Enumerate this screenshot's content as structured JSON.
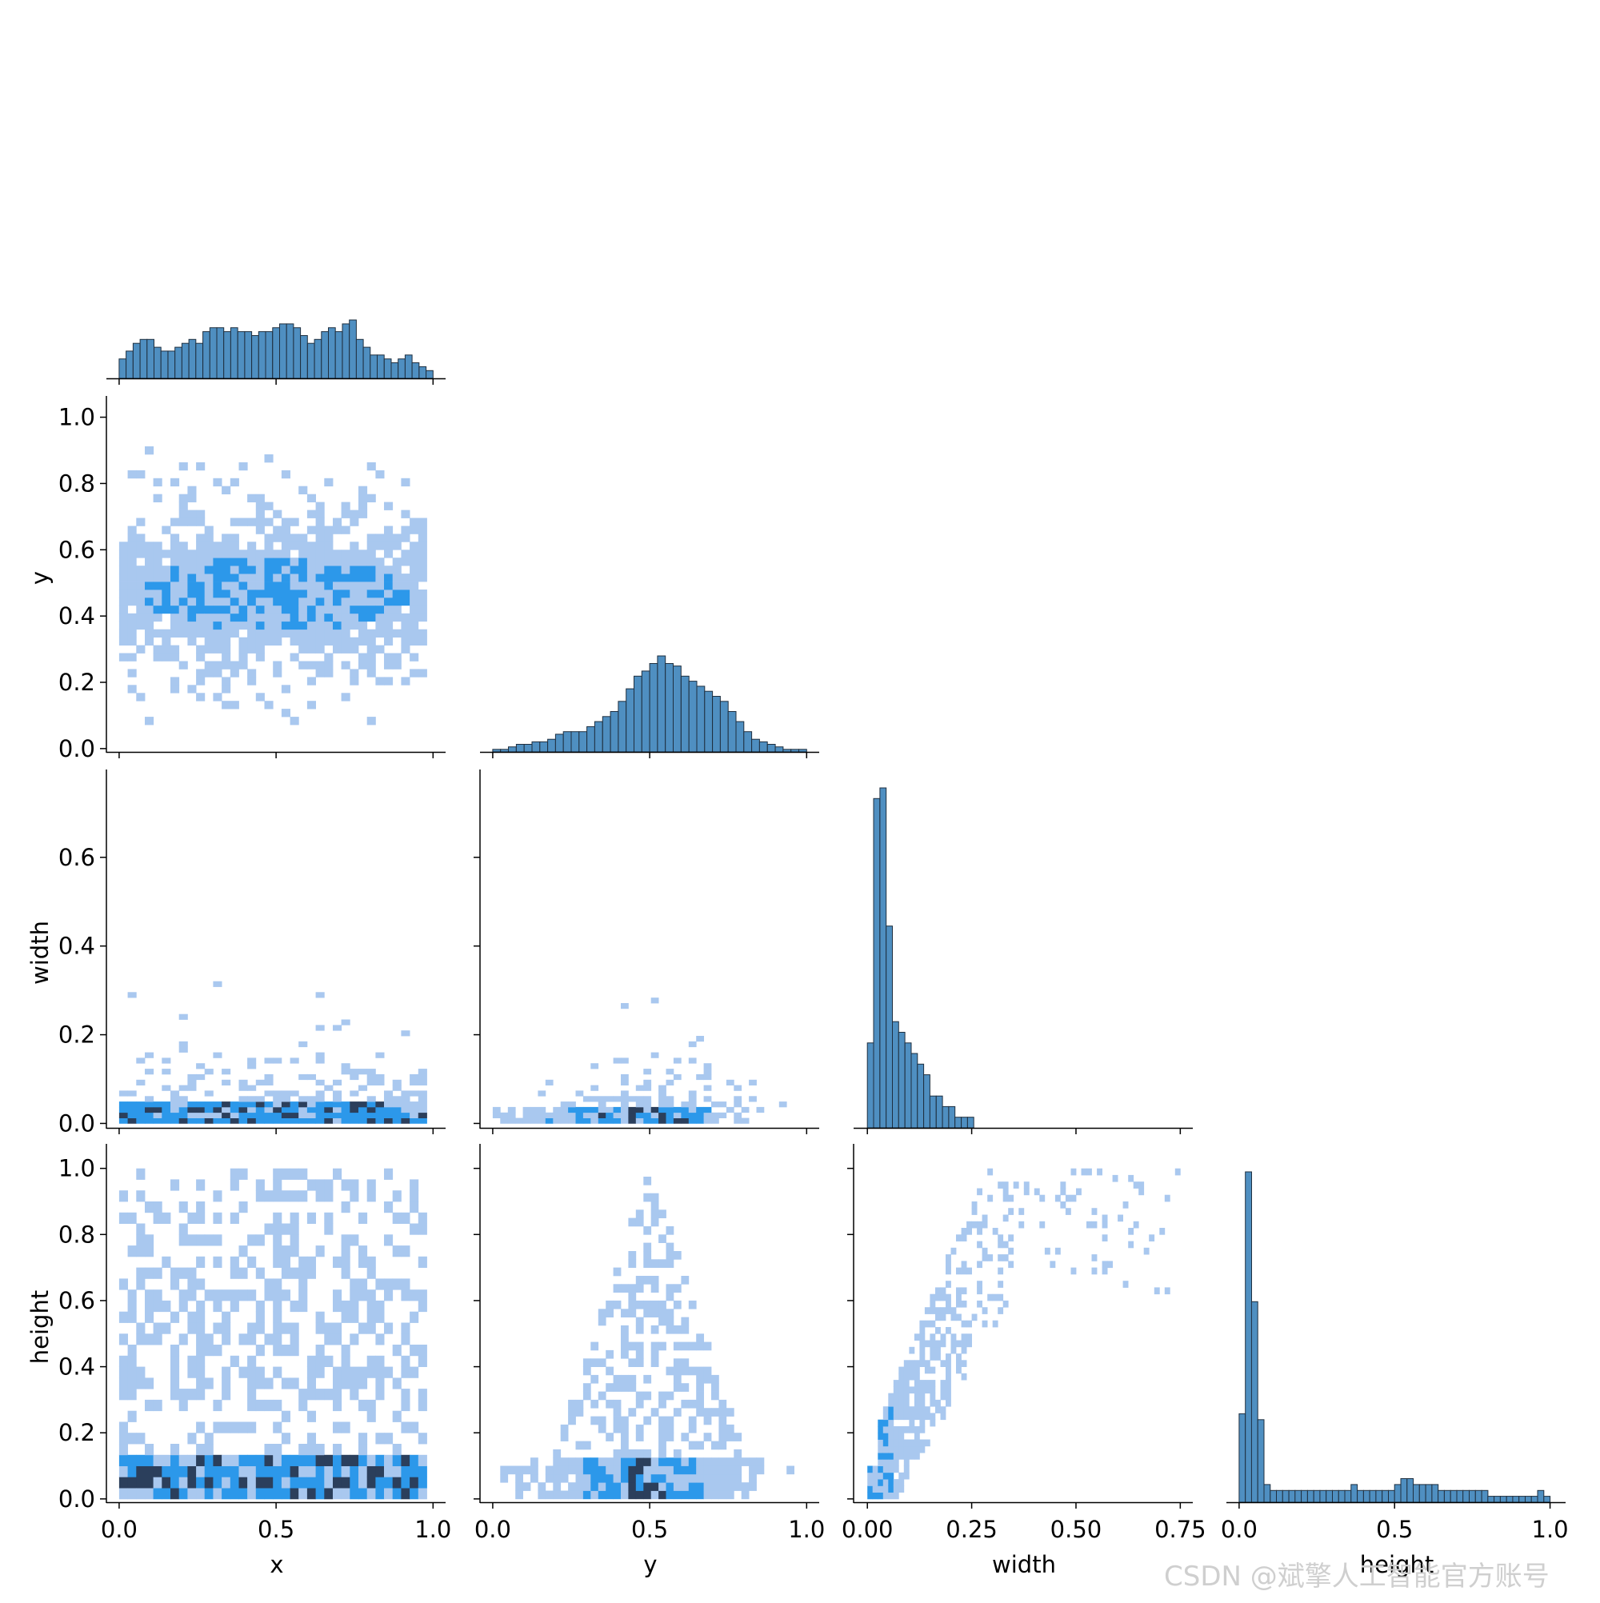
{
  "colors": {
    "hist_fill": "#4f8fc1",
    "hist_edge": "#1f2f3f",
    "heat_light": "#a9c8ef",
    "heat_mid": "#2c98ea",
    "heat_dark": "#2b3f5c",
    "axis": "#000000"
  },
  "watermark": "CSDN @斌擎人工智能官方账号",
  "chart_data": {
    "type": "pairplot",
    "variables": [
      "x",
      "y",
      "width",
      "height"
    ],
    "axis_labels": {
      "x": "x",
      "y": "y",
      "width": "width",
      "height": "height"
    },
    "ticks": {
      "x": {
        "values": [
          0.0,
          0.5,
          1.0
        ],
        "labels": [
          "0.0",
          "0.5",
          "1.0"
        ]
      },
      "y": {
        "values": [
          0.0,
          0.5,
          1.0
        ],
        "labels": [
          "0.0",
          "0.5",
          "1.0"
        ]
      },
      "width": {
        "values": [
          0.0,
          0.25,
          0.5,
          0.75
        ],
        "labels": [
          "0.00",
          "0.25",
          "0.50",
          "0.75"
        ]
      },
      "height": {
        "values": [
          0.0,
          0.5,
          1.0
        ],
        "labels": [
          "0.0",
          "0.5",
          "1.0"
        ]
      }
    },
    "row_ticks": {
      "y": {
        "values": [
          0.0,
          0.2,
          0.4,
          0.6,
          0.8,
          1.0
        ],
        "labels": [
          "0.0",
          "0.2",
          "0.4",
          "0.6",
          "0.8",
          "1.0"
        ]
      },
      "width": {
        "values": [
          0.0,
          0.2,
          0.4,
          0.6
        ],
        "labels": [
          "0.0",
          "0.2",
          "0.4",
          "0.6"
        ]
      },
      "height": {
        "values": [
          0.0,
          0.2,
          0.4,
          0.6,
          0.8,
          1.0
        ],
        "labels": [
          "0.0",
          "0.2",
          "0.4",
          "0.6",
          "0.8",
          "1.0"
        ]
      }
    },
    "ranges": {
      "x": [
        -0.01,
        1.04
      ],
      "y": [
        -0.01,
        1.04
      ],
      "width": [
        -0.01,
        0.78
      ],
      "height": [
        -0.01,
        1.05
      ]
    },
    "grid": false,
    "histograms": {
      "x": {
        "range": [
          0.0,
          1.0
        ],
        "counts": [
          5,
          7,
          9,
          10,
          10,
          8,
          7,
          7,
          8,
          9,
          10,
          9,
          12,
          13,
          13,
          12,
          13,
          12,
          12,
          11,
          12,
          12,
          13,
          14,
          14,
          13,
          11,
          9,
          10,
          12,
          13,
          12,
          14,
          15,
          10,
          8,
          6,
          6,
          5,
          4,
          5,
          6,
          4,
          3,
          2
        ]
      },
      "y": {
        "range": [
          0.0,
          1.0
        ],
        "counts": [
          1,
          1,
          2,
          3,
          3,
          4,
          4,
          5,
          7,
          8,
          8,
          8,
          10,
          12,
          14,
          16,
          20,
          25,
          30,
          32,
          35,
          38,
          35,
          34,
          30,
          28,
          26,
          24,
          22,
          20,
          16,
          12,
          8,
          5,
          4,
          3,
          2,
          1,
          1,
          1
        ]
      },
      "width": {
        "range": [
          0.0,
          0.75
        ],
        "counts": [
          8,
          31,
          32,
          19,
          10,
          9,
          8,
          7,
          6,
          5,
          3,
          3,
          2,
          2,
          1,
          1,
          1,
          0,
          0,
          0,
          0,
          0,
          0,
          0,
          0,
          0,
          0,
          0,
          0,
          0,
          0,
          0,
          0,
          0,
          0,
          0,
          0,
          0,
          0,
          0,
          0,
          0,
          0,
          0,
          0,
          0,
          0,
          0,
          0,
          0
        ]
      },
      "height": {
        "range": [
          0.0,
          1.0
        ],
        "counts": [
          15,
          56,
          34,
          14,
          3,
          2,
          2,
          2,
          2,
          2,
          2,
          2,
          2,
          2,
          2,
          2,
          2,
          2,
          3,
          2,
          2,
          2,
          2,
          2,
          2,
          3,
          4,
          4,
          3,
          3,
          3,
          3,
          2,
          2,
          2,
          2,
          2,
          2,
          2,
          2,
          1,
          1,
          1,
          1,
          1,
          1,
          1,
          1,
          2,
          1
        ]
      }
    },
    "bivariate_histograms": [
      {
        "row": "y",
        "col": "x",
        "note": "broad band, densest around y 0.35-0.6"
      },
      {
        "row": "width",
        "col": "x",
        "note": "densest at width near 0.02-0.05"
      },
      {
        "row": "width",
        "col": "y",
        "note": "triangular cluster, densest at width near 0.02"
      },
      {
        "row": "height",
        "col": "x",
        "note": "dense strip at height 0.0-0.1"
      },
      {
        "row": "height",
        "col": "y",
        "note": "triangle peaking at y 0.5, dense strip near height 0.05"
      },
      {
        "row": "height",
        "col": "width",
        "note": "strong positive relation, dense near origin"
      }
    ]
  }
}
